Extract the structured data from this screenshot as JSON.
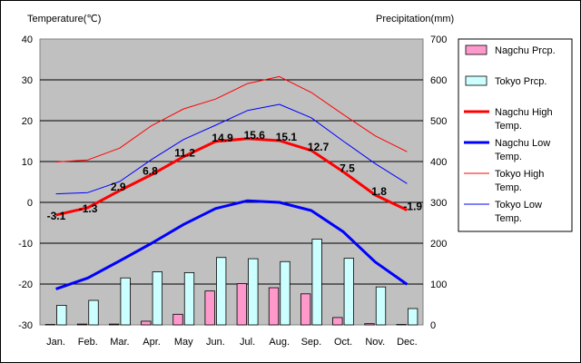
{
  "chart_data": {
    "type": "bar+line",
    "y_left_label": "Temperature(℃)",
    "y_right_label": "Precipitation(mm)",
    "y_left_range": [
      -30,
      40
    ],
    "y_left_ticks": [
      "40",
      "30",
      "20",
      "10",
      "0",
      "-10",
      "-20",
      "-30"
    ],
    "y_right_range": [
      0,
      700
    ],
    "y_right_ticks": [
      "700",
      "600",
      "500",
      "400",
      "300",
      "200",
      "100",
      "0"
    ],
    "categories": [
      "Jan.",
      "Feb.",
      "Mar.",
      "Apr.",
      "May",
      "Jun.",
      "Jul.",
      "Aug.",
      "Sep.",
      "Oct.",
      "Nov.",
      "Dec."
    ],
    "bars": [
      {
        "name": "Nagchu Prcp.",
        "color": "#ff99cc",
        "values": [
          1,
          2,
          2,
          9,
          26,
          83,
          101,
          91,
          76,
          18,
          3,
          1
        ]
      },
      {
        "name": "Tokyo Prcp.",
        "color": "#ccffff",
        "values": [
          48,
          60,
          115,
          130,
          128,
          165,
          162,
          155,
          210,
          163,
          93,
          40
        ]
      }
    ],
    "lines": [
      {
        "name": "Nagchu High Temp.",
        "color": "#ff0000",
        "width": 3,
        "values": [
          -3.1,
          -1.3,
          2.9,
          6.8,
          11.2,
          14.9,
          15.6,
          15.1,
          12.7,
          7.5,
          1.8,
          -1.9
        ],
        "labels": [
          "-3.1",
          "-1.3",
          "2.9",
          "6.8",
          "11.2",
          "14.9",
          "15.6",
          "15.1",
          "12.7",
          "7.5",
          "1.8",
          "-1.9"
        ]
      },
      {
        "name": "Nagchu Low Temp.",
        "color": "#0000ff",
        "width": 3,
        "values": [
          -21.2,
          -18.5,
          -14.3,
          -10.0,
          -5.4,
          -1.5,
          0.4,
          0.0,
          -2.0,
          -7.2,
          -14.6,
          -20.1
        ]
      },
      {
        "name": "Tokyo High Temp.",
        "color": "#ff0000",
        "width": 1,
        "values": [
          9.9,
          10.4,
          13.3,
          18.8,
          22.9,
          25.3,
          29.1,
          30.8,
          26.9,
          21.5,
          16.3,
          12.4
        ]
      },
      {
        "name": "Tokyo Low Temp.",
        "color": "#0000ff",
        "width": 1,
        "values": [
          2.1,
          2.4,
          5.1,
          10.5,
          15.4,
          18.9,
          22.5,
          24.0,
          20.7,
          15.0,
          9.5,
          4.6
        ]
      }
    ],
    "legend_position": "right",
    "grid": true,
    "plot_background": "#c0c0c0"
  },
  "legend": [
    {
      "label": "Nagchu Prcp.",
      "kind": "bar",
      "color": "#ff99cc"
    },
    {
      "label": "Tokyo Prcp.",
      "kind": "bar",
      "color": "#ccffff"
    },
    {
      "label": "Nagchu High Temp.",
      "kind": "line",
      "color": "#ff0000",
      "width": 3
    },
    {
      "label": "Nagchu Low Temp.",
      "kind": "line",
      "color": "#0000ff",
      "width": 3
    },
    {
      "label": "Tokyo High Temp.",
      "kind": "line",
      "color": "#ff0000",
      "width": 1
    },
    {
      "label": "Tokyo Low Temp.",
      "kind": "line",
      "color": "#0000ff",
      "width": 1
    }
  ]
}
